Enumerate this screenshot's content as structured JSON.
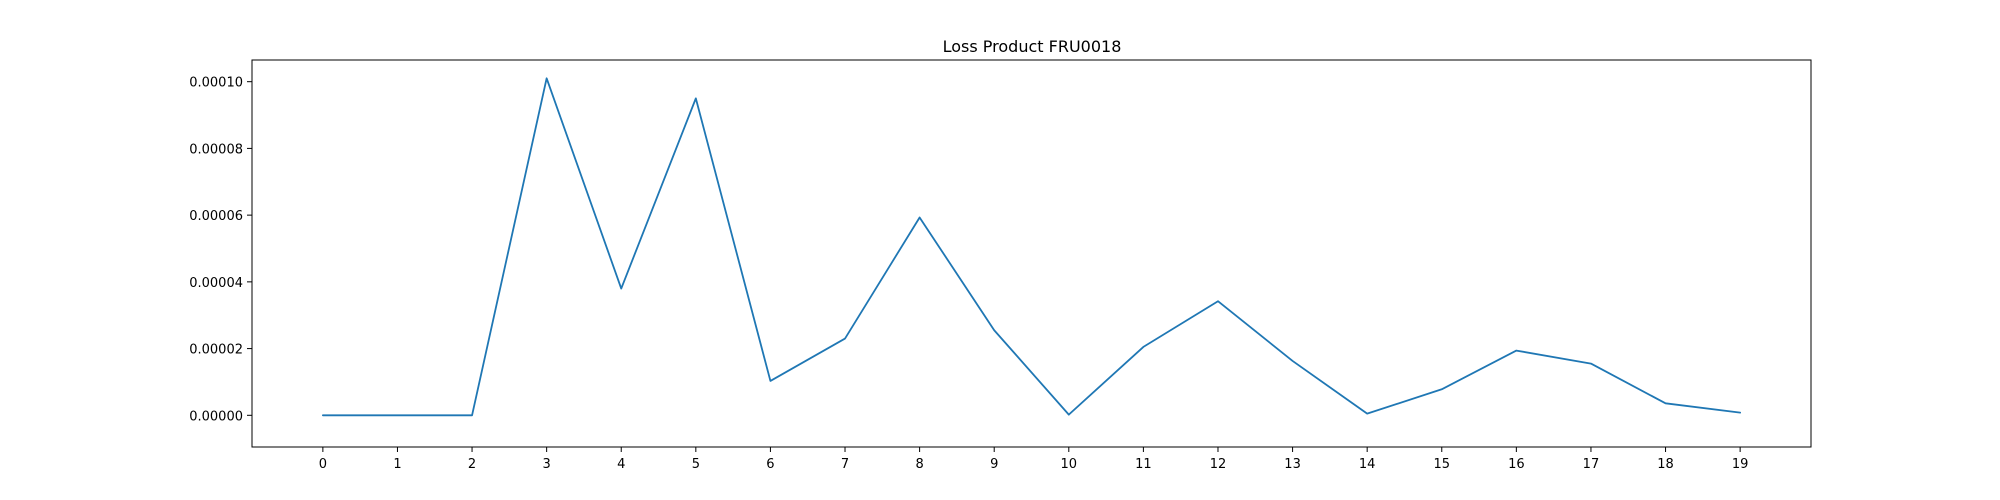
{
  "chart_data": {
    "type": "line",
    "title": "Loss Product FRU0018",
    "xlabel": "",
    "ylabel": "",
    "x": [
      0,
      1,
      2,
      3,
      4,
      5,
      6,
      7,
      8,
      9,
      10,
      11,
      12,
      13,
      14,
      15,
      16,
      17,
      18,
      19
    ],
    "x_tick_labels": [
      "0",
      "1",
      "2",
      "3",
      "4",
      "5",
      "6",
      "7",
      "8",
      "9",
      "10",
      "11",
      "12",
      "13",
      "14",
      "15",
      "16",
      "17",
      "18",
      "19"
    ],
    "y_tick_values": [
      0,
      2e-05,
      4e-05,
      6e-05,
      8e-05,
      0.0001
    ],
    "y_tick_labels": [
      "0.00000",
      "0.00002",
      "0.00004",
      "0.00006",
      "0.00008",
      "0.00010"
    ],
    "xlim": [
      -0.95,
      19.95
    ],
    "ylim": [
      -9.5e-06,
      0.0001065
    ],
    "grid": false,
    "series": [
      {
        "color": "#1f77b4",
        "values": [
          0,
          0,
          0,
          0.000101,
          3.8e-05,
          9.5e-05,
          1.03e-05,
          2.3e-05,
          5.93e-05,
          2.55e-05,
          2e-07,
          2.05e-05,
          3.42e-05,
          1.63e-05,
          5e-07,
          7.8e-06,
          1.94e-05,
          1.55e-05,
          3.6e-06,
          8e-07
        ]
      }
    ]
  }
}
